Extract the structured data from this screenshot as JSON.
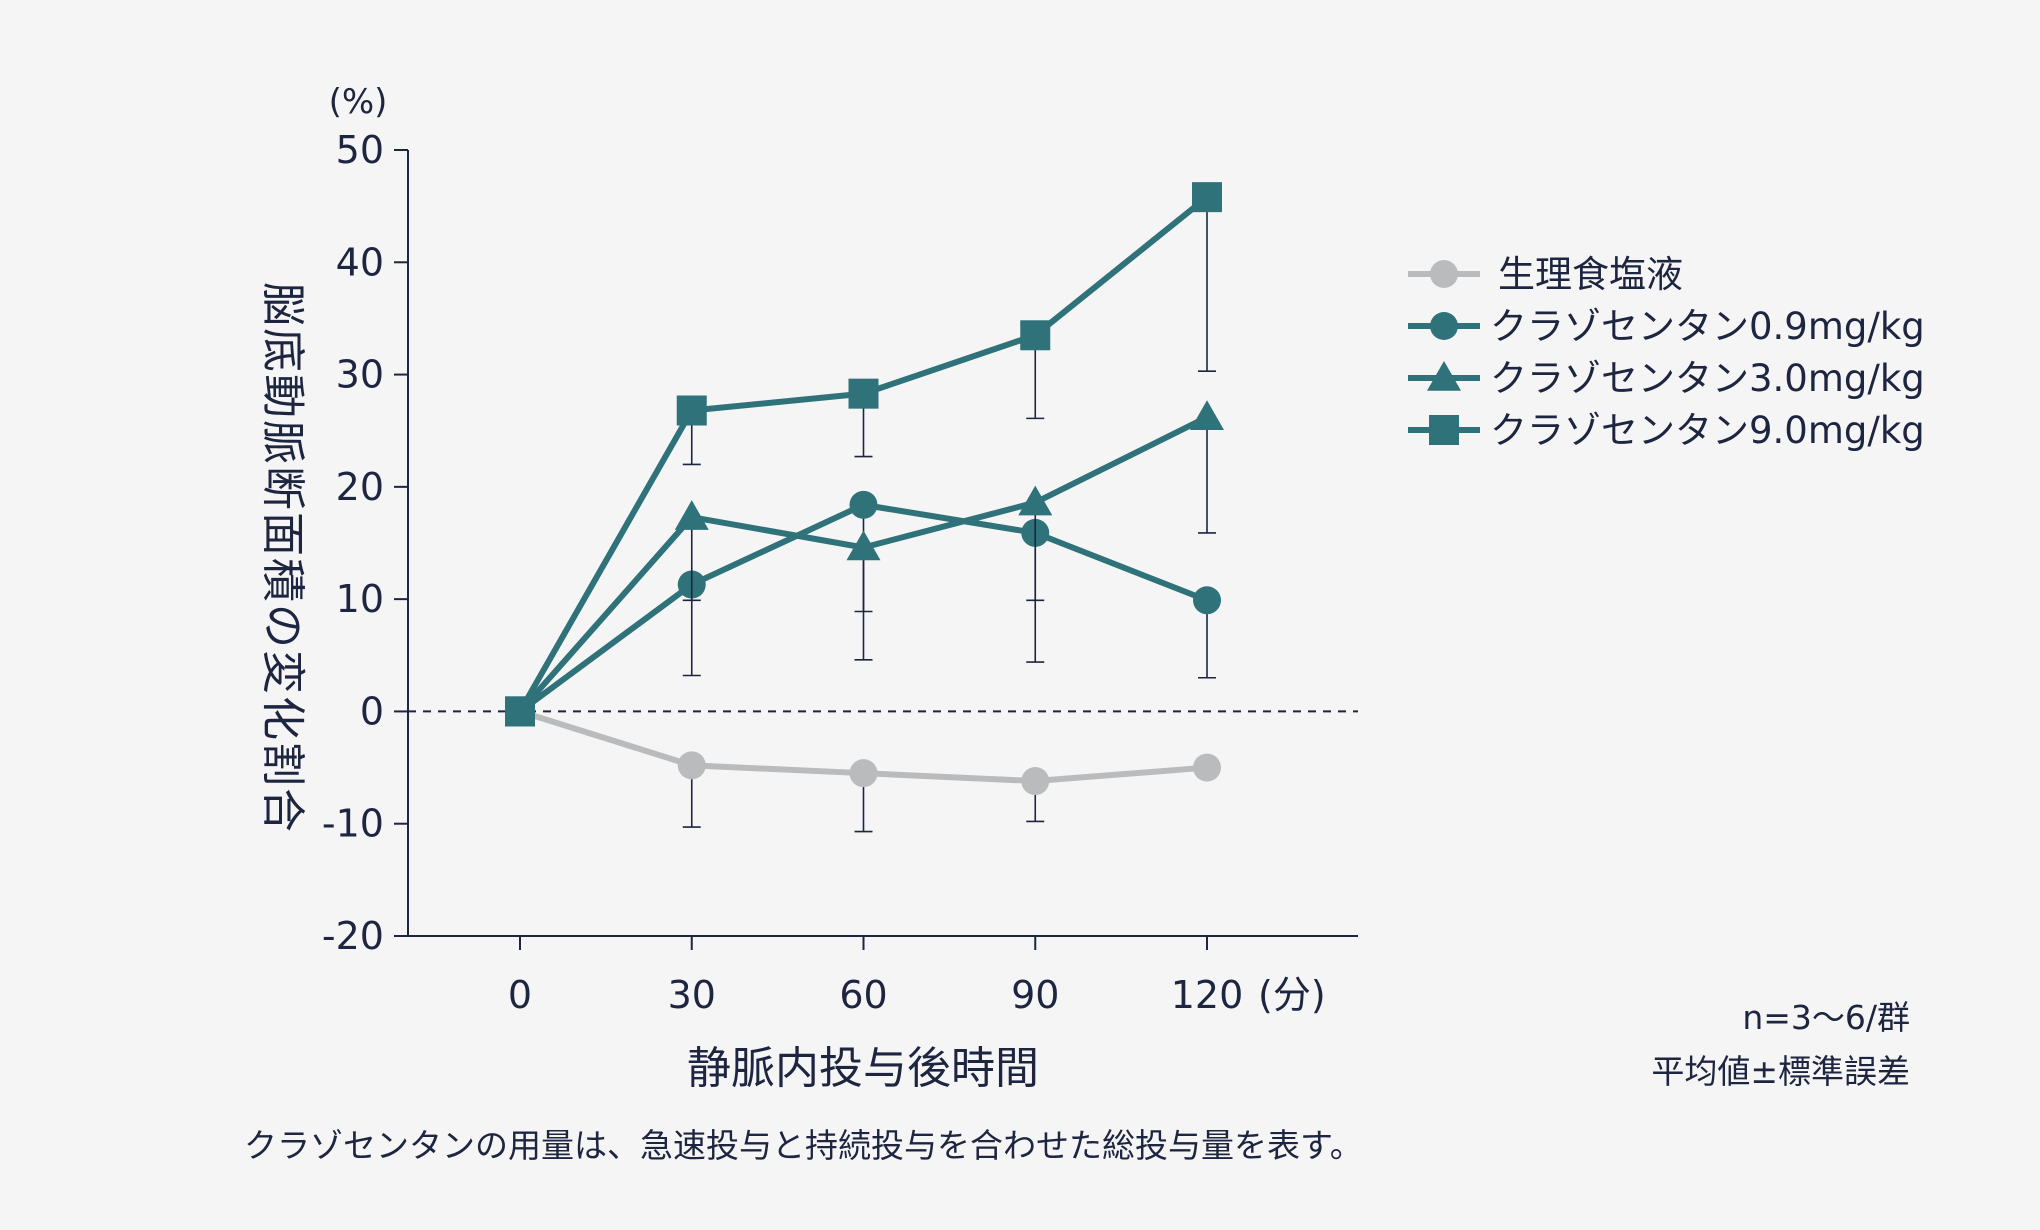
{
  "chart_data": {
    "type": "line",
    "x": [
      0,
      30,
      60,
      90,
      120
    ],
    "xlabel": "静脈内投与後時間",
    "x_unit": "(分)",
    "ylabel": "脳底動脈断面積の変化割合",
    "y_unit": "(%)",
    "ylim": [
      -20,
      50
    ],
    "yticks": [
      -20,
      -10,
      0,
      10,
      20,
      30,
      40,
      50
    ],
    "reference_line": 0,
    "legend_position": "right",
    "series": [
      {
        "name": "生理食塩液",
        "marker": "circle",
        "color": "#b9bbbd",
        "values": [
          0,
          -4.8,
          -5.5,
          -6.2,
          -5.0
        ],
        "error": [
          0,
          5.5,
          5.2,
          3.6,
          null
        ]
      },
      {
        "name": "クラゾセンタン0.9mg/kg",
        "marker": "circle",
        "color": "#2f727a",
        "values": [
          0,
          11.3,
          18.4,
          15.9,
          9.9
        ],
        "error": [
          0,
          8.1,
          13.8,
          11.5,
          6.9
        ]
      },
      {
        "name": "クラゾセンタン3.0mg/kg",
        "marker": "triangle",
        "color": "#2f727a",
        "values": [
          0,
          17.3,
          14.6,
          18.6,
          26.2
        ],
        "error": [
          0,
          7.4,
          5.7,
          8.7,
          10.3
        ]
      },
      {
        "name": "クラゾセンタン9.0mg/kg",
        "marker": "square",
        "color": "#2f727a",
        "values": [
          0,
          26.8,
          28.3,
          33.5,
          45.8
        ],
        "error": [
          0,
          4.8,
          5.6,
          7.4,
          15.5
        ]
      }
    ]
  },
  "notes": {
    "sample_size": "n=3〜6/群",
    "statistics": "平均値±標準誤差",
    "dosage_note": "クラゾセンタンの用量は、急速投与と持続投与を合わせた総投与量を表す。"
  }
}
